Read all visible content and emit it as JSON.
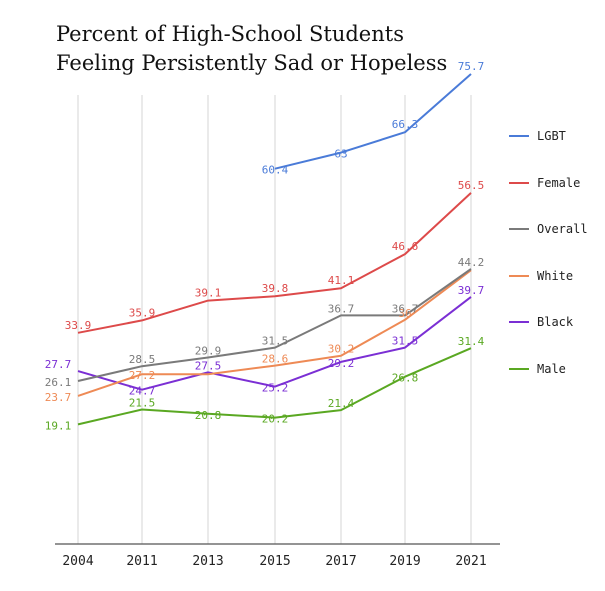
{
  "chart_data": {
    "type": "line",
    "title": "Percent of High-School Students Feeling Persistently Sad or Hopeless",
    "categories": [
      "2004",
      "2011",
      "2013",
      "2015",
      "2017",
      "2019",
      "2021"
    ],
    "ylim": [
      0,
      85
    ],
    "grid": "vertical",
    "legend_position": "right",
    "series": [
      {
        "name": "LGBT",
        "color": "#4a7bd8",
        "values": [
          null,
          null,
          null,
          60.4,
          63,
          66.3,
          75.7
        ],
        "labels": [
          "",
          "",
          "",
          "60.4",
          "63",
          "66.3",
          "75.7"
        ]
      },
      {
        "name": "Female",
        "color": "#dd4a4a",
        "values": [
          33.9,
          35.9,
          39.1,
          39.8,
          41.1,
          46.6,
          56.5
        ],
        "labels": [
          "33.9",
          "35.9",
          "39.1",
          "39.8",
          "41.1",
          "46.6",
          "56.5"
        ]
      },
      {
        "name": "Overall",
        "color": "#7a7a7a",
        "values": [
          26.1,
          28.5,
          29.9,
          31.5,
          36.7,
          36.7,
          44.2
        ],
        "labels": [
          "26.1",
          "28.5",
          "29.9",
          "31.5",
          "36.7",
          "36.7",
          "44.2"
        ]
      },
      {
        "name": "White",
        "color": "#ee8a55",
        "values": [
          23.7,
          27.2,
          27.2,
          28.6,
          30.2,
          36,
          44
        ],
        "labels": [
          "23.7",
          "27.2",
          "",
          "28.6",
          "30.2",
          "36",
          ""
        ]
      },
      {
        "name": "Black",
        "color": "#7b2fd4",
        "values": [
          27.7,
          24.7,
          27.5,
          25.2,
          29.2,
          31.5,
          39.7
        ],
        "labels": [
          "27.7",
          "24.7",
          "27.5",
          "25.2",
          "29.2",
          "31.5",
          "39.7"
        ]
      },
      {
        "name": "Male",
        "color": "#5aa822",
        "values": [
          19.1,
          21.5,
          20.8,
          20.2,
          21.4,
          26.8,
          31.4
        ],
        "labels": [
          "19.1",
          "21.5",
          "20.8",
          "20.2",
          "21.4",
          "26.8",
          "31.4"
        ]
      }
    ]
  }
}
